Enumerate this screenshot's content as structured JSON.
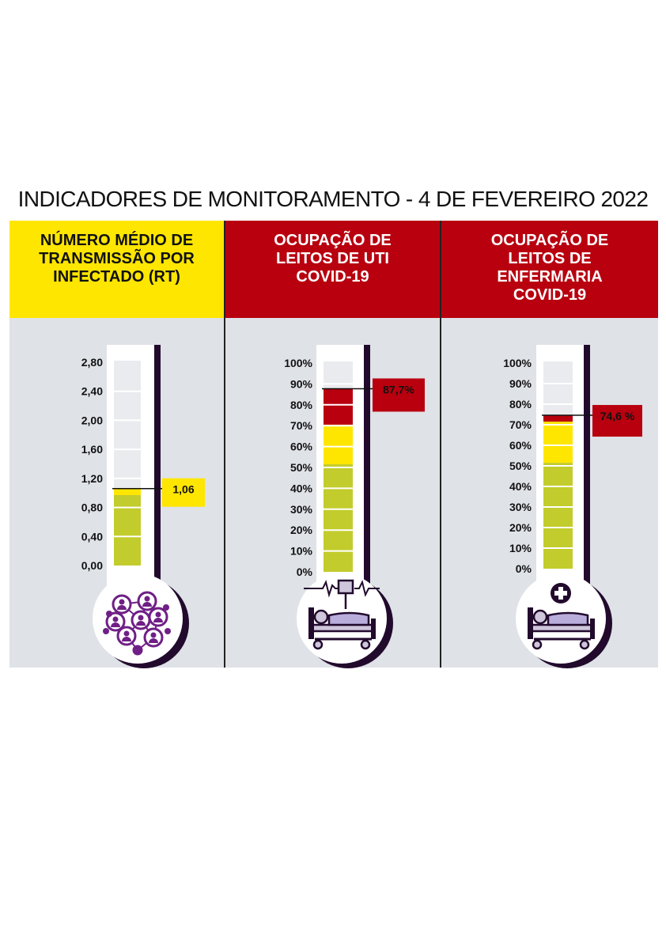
{
  "title": "INDICADORES DE MONITORAMENTO  -  4 DE FEVEREIRO 2022",
  "colors": {
    "panel_bg": "#dfe2e7",
    "yellow": "#ffe600",
    "red": "#b8000f",
    "green": "#c2cc2c",
    "tube": "#e9ebef",
    "purple": "#6f1f86",
    "dark": "#220a2d"
  },
  "chart_data": [
    {
      "type": "bar",
      "title": "NÚMERO MÉDIO DE TRANSMISSÃO POR INFECTADO (RT)",
      "title_lines": [
        "NÚMERO MÉDIO DE",
        "TRANSMISSÃO POR",
        "INFECTADO (RT)"
      ],
      "header_color": "yellow",
      "icon": "people-network-icon",
      "ticks": [
        "0,00",
        "0,40",
        "0,80",
        "1,20",
        "1,60",
        "2,00",
        "2,40",
        "2,80"
      ],
      "tick_values": [
        0,
        0.4,
        0.8,
        1.2,
        1.6,
        2.0,
        2.4,
        2.8
      ],
      "ylim": [
        0,
        2.8
      ],
      "value": 1.06,
      "value_label": "1,06",
      "label_color": "yellow",
      "segments": [
        {
          "from": 0,
          "to": 0.97,
          "color": "green"
        },
        {
          "from": 0.97,
          "to": 1.06,
          "color": "yellow"
        }
      ]
    },
    {
      "type": "bar",
      "title": "OCUPAÇÃO DE LEITOS DE UTI COVID-19",
      "title_lines": [
        "OCUPAÇÃO DE",
        "LEITOS DE UTI",
        "COVID-19"
      ],
      "header_color": "red",
      "icon": "icu-bed-monitor-icon",
      "ticks": [
        "0%",
        "10%",
        "20%",
        "30%",
        "40%",
        "50%",
        "60%",
        "70%",
        "80%",
        "90%",
        "100%"
      ],
      "tick_values": [
        0,
        10,
        20,
        30,
        40,
        50,
        60,
        70,
        80,
        90,
        100
      ],
      "ylim": [
        0,
        100
      ],
      "value": 87.7,
      "value_label": "87,7%",
      "label_color": "red",
      "segments": [
        {
          "from": 0,
          "to": 51.5,
          "color": "green"
        },
        {
          "from": 51.5,
          "to": 70.5,
          "color": "yellow"
        },
        {
          "from": 70.5,
          "to": 87.7,
          "color": "red"
        }
      ]
    },
    {
      "type": "bar",
      "title": "OCUPAÇÃO DE LEITOS DE ENFERMARIA COVID-19",
      "title_lines": [
        "OCUPAÇÃO DE",
        "LEITOS DE",
        "ENFERMARIA",
        "COVID-19"
      ],
      "header_color": "red",
      "icon": "ward-bed-cross-icon",
      "ticks": [
        "0%",
        "10%",
        "20%",
        "30%",
        "40%",
        "50%",
        "60%",
        "70%",
        "80%",
        "90%",
        "100%"
      ],
      "tick_values": [
        0,
        10,
        20,
        30,
        40,
        50,
        60,
        70,
        80,
        90,
        100
      ],
      "ylim": [
        0,
        100
      ],
      "value": 74.6,
      "value_label": "74,6 %",
      "label_color": "red",
      "segments": [
        {
          "from": 0,
          "to": 51.5,
          "color": "green"
        },
        {
          "from": 51.5,
          "to": 71.5,
          "color": "yellow"
        },
        {
          "from": 71.5,
          "to": 74.6,
          "color": "red"
        }
      ]
    }
  ]
}
